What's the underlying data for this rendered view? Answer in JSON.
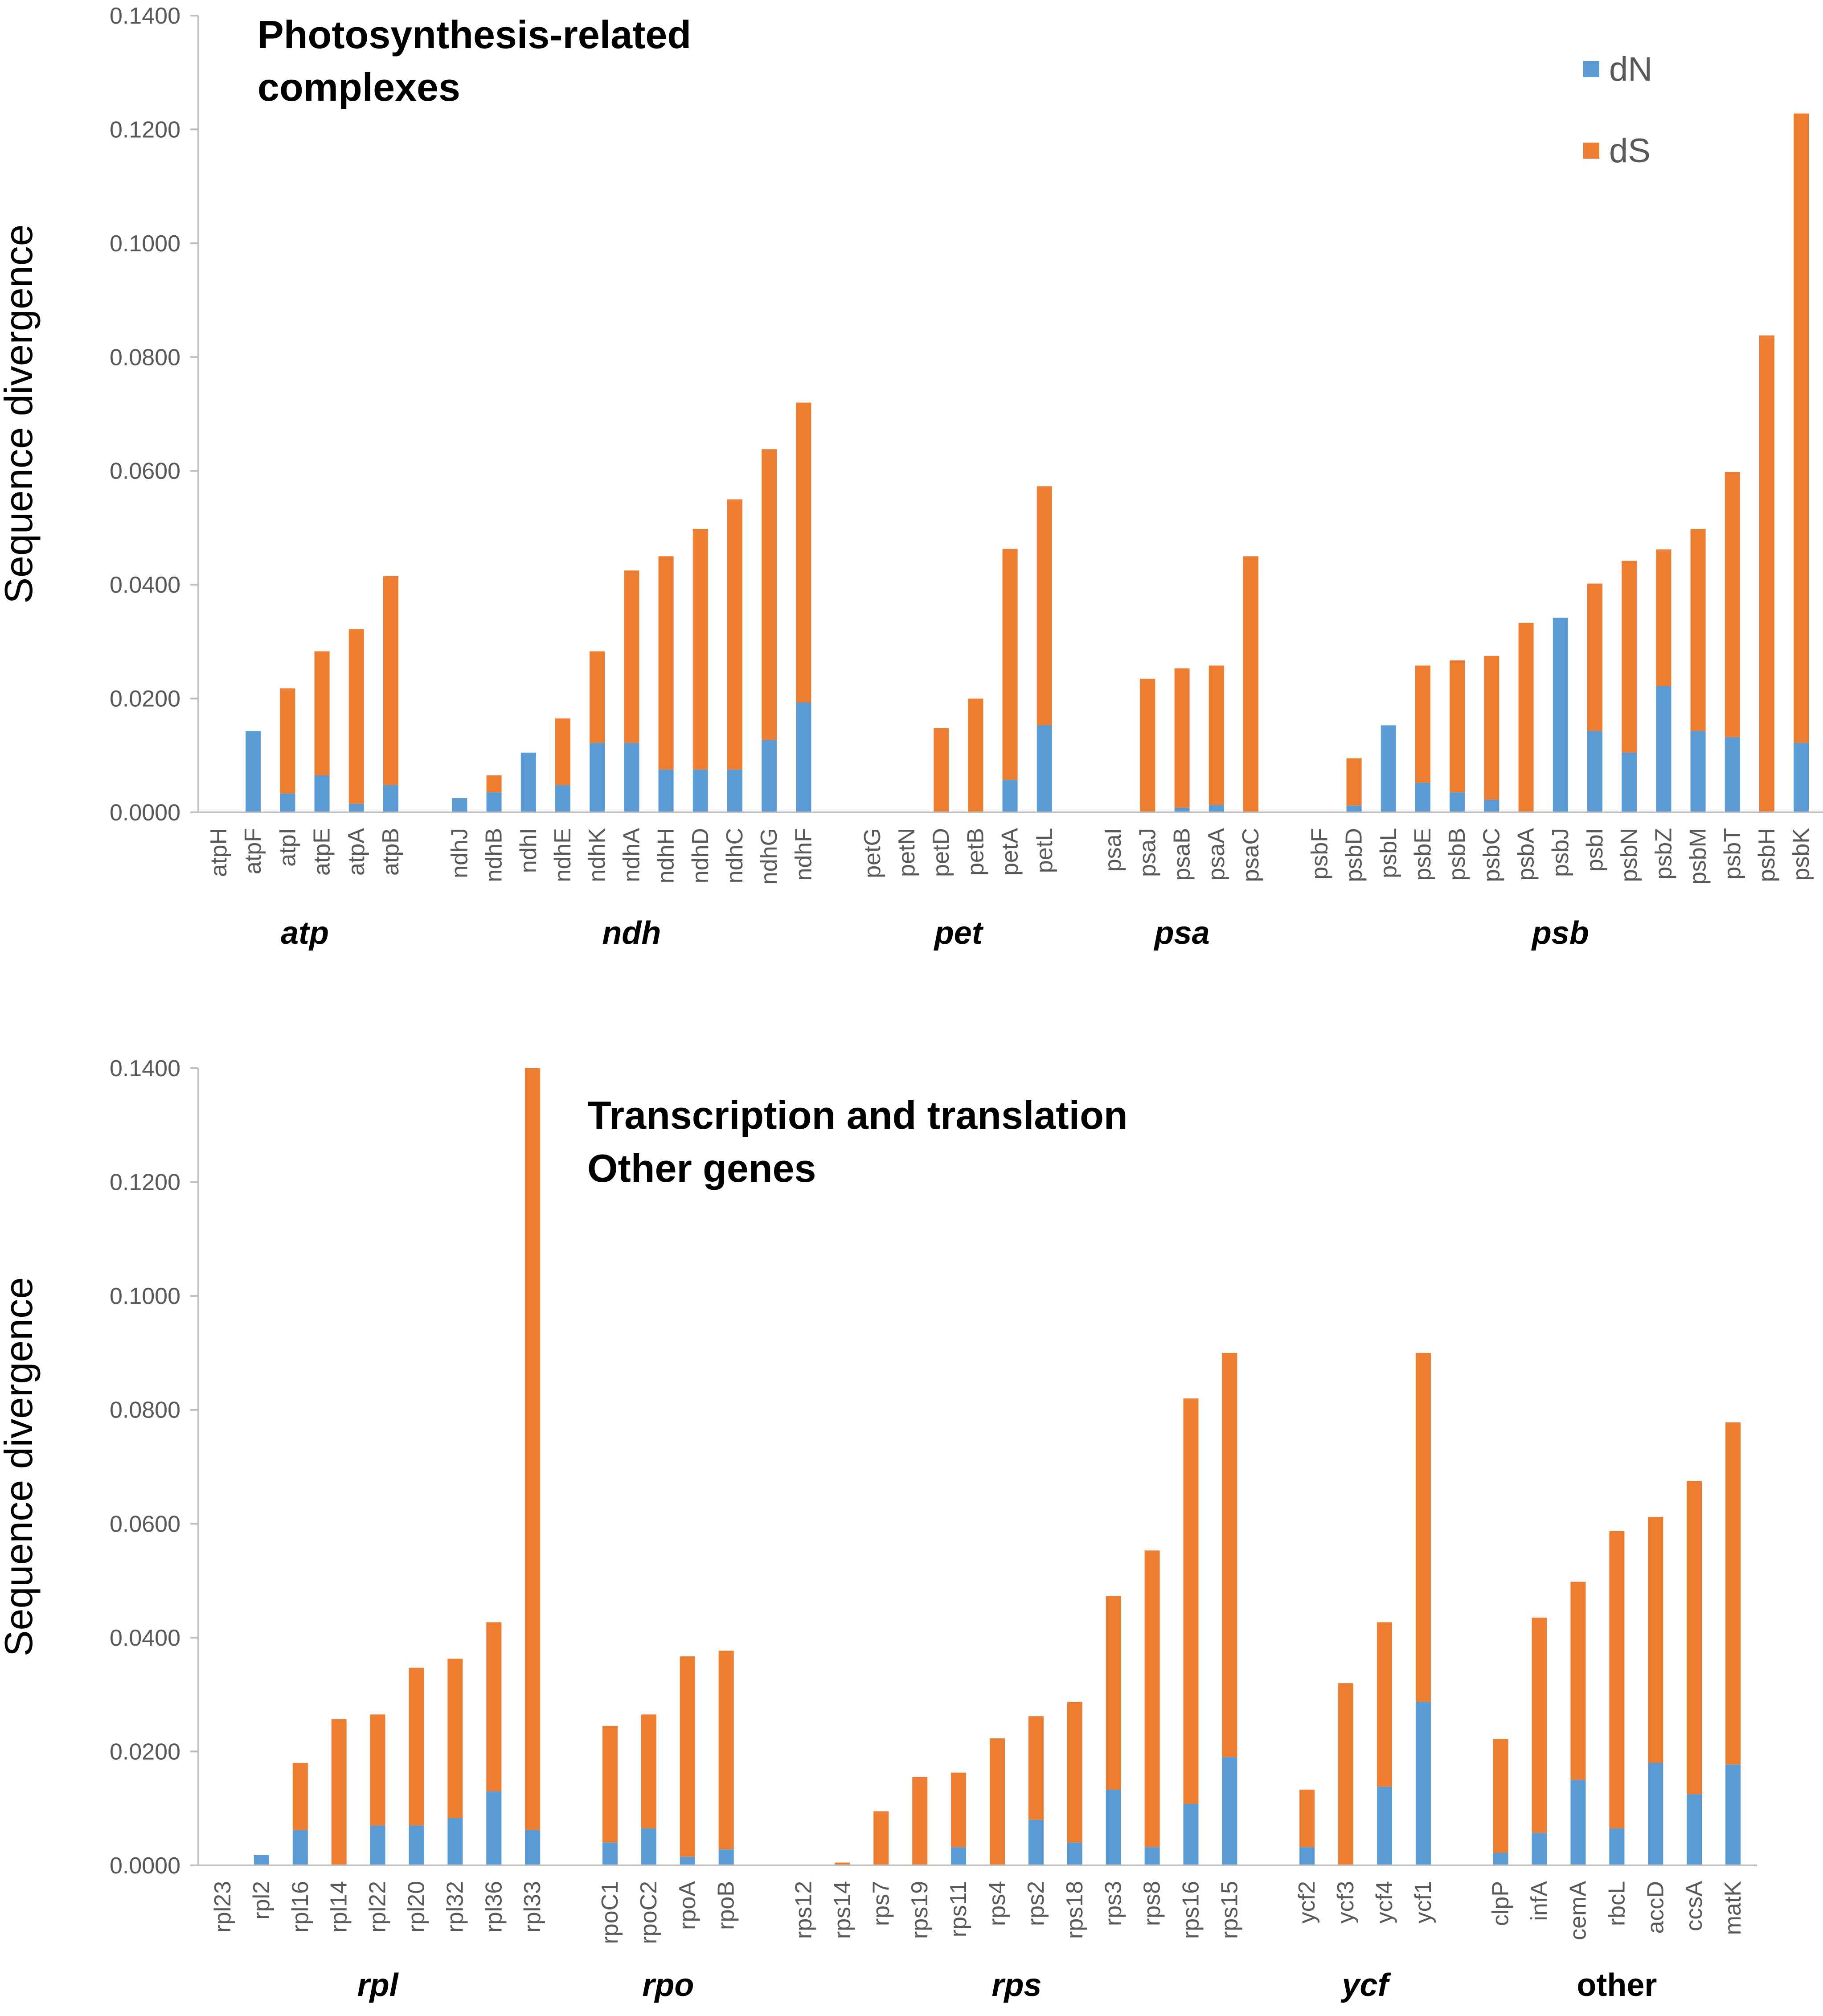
{
  "colors": {
    "dN": "#5b9bd5",
    "dS": "#ed7d31",
    "axis": "#bfbfbf",
    "text": "#595959"
  },
  "chart_data": [
    {
      "type": "bar",
      "stacked": true,
      "title": "Photosynthesis-related complexes",
      "title_lines": [
        "Photosynthesis-related",
        "complexes"
      ],
      "ylabel": "Sequence divergence",
      "ylim": [
        0,
        0.14
      ],
      "yticks": [
        "0.0000",
        "0.0200",
        "0.0400",
        "0.0600",
        "0.0800",
        "0.1000",
        "0.1200",
        "0.1400"
      ],
      "legend": [
        "dN",
        "dS"
      ],
      "legend_position": "top-right",
      "groups": [
        {
          "label": "atp",
          "genes": [
            "atpH",
            "atpF",
            "atpI",
            "atpE",
            "atpA",
            "atpB"
          ],
          "dN": [
            0,
            0.0143,
            0.0033,
            0.0065,
            0.0015,
            0.0048
          ],
          "total": [
            0,
            0.0143,
            0.0218,
            0.0283,
            0.0322,
            0.0415
          ]
        },
        {
          "label": "ndh",
          "genes": [
            "ndhJ",
            "ndhB",
            "ndhI",
            "ndhE",
            "ndhK",
            "ndhA",
            "ndhH",
            "ndhD",
            "ndhC",
            "ndhG",
            "ndhF"
          ],
          "dN": [
            0.0025,
            0.0035,
            0.0105,
            0.0048,
            0.0122,
            0.0122,
            0.0075,
            0.0075,
            0.0075,
            0.0127,
            0.0193
          ],
          "total": [
            0.0025,
            0.0065,
            0.0105,
            0.0165,
            0.0283,
            0.0425,
            0.045,
            0.0498,
            0.055,
            0.0638,
            0.072
          ]
        },
        {
          "label": "pet",
          "genes": [
            "petG",
            "petN",
            "petD",
            "petB",
            "petA",
            "petL"
          ],
          "dN": [
            0,
            0,
            0,
            0,
            0.0057,
            0.0153
          ],
          "total": [
            0,
            0,
            0.0148,
            0.02,
            0.0463,
            0.0573
          ]
        },
        {
          "label": "psa",
          "genes": [
            "psaI",
            "psaJ",
            "psaB",
            "psaA",
            "psaC"
          ],
          "dN": [
            0,
            0,
            0.0008,
            0.0013,
            0
          ],
          "total": [
            0,
            0.0235,
            0.0253,
            0.0258,
            0.045
          ]
        },
        {
          "label": "psb",
          "genes": [
            "psbF",
            "psbD",
            "psbL",
            "psbE",
            "psbB",
            "psbC",
            "psbA",
            "psbJ",
            "psbI",
            "psbN",
            "psbZ",
            "psbM",
            "psbT",
            "psbH",
            "psbK"
          ],
          "dN": [
            0,
            0.0012,
            0.0153,
            0.0052,
            0.0035,
            0.0022,
            0,
            0.0342,
            0.0143,
            0.0105,
            0.0222,
            0.0143,
            0.0132,
            0,
            0.0122
          ],
          "total": [
            0,
            0.0095,
            0.0153,
            0.0258,
            0.0267,
            0.0275,
            0.0333,
            0.0342,
            0.0402,
            0.0442,
            0.0462,
            0.0498,
            0.0598,
            0.0838,
            0.1228
          ]
        }
      ]
    },
    {
      "type": "bar",
      "stacked": true,
      "title": "Transcription and translation Other genes",
      "title_lines": [
        "Transcription and  translation",
        "Other genes"
      ],
      "ylabel": "Sequence divergence",
      "ylim": [
        0,
        0.14
      ],
      "yticks": [
        "0.0000",
        "0.0200",
        "0.0400",
        "0.0600",
        "0.0800",
        "0.1000",
        "0.1200",
        "0.1400"
      ],
      "legend": [
        "dN",
        "dS"
      ],
      "groups": [
        {
          "label": "rpl",
          "genes": [
            "rpl23",
            "rpl2",
            "rpl16",
            "rpl14",
            "rpl22",
            "rpl20",
            "rpl32",
            "rpl36",
            "rpl33"
          ],
          "dN": [
            0,
            0.0018,
            0.0062,
            0,
            0.007,
            0.007,
            0.0083,
            0.013,
            0.0062
          ],
          "total": [
            0,
            0.0018,
            0.018,
            0.0257,
            0.0265,
            0.0347,
            0.0363,
            0.0427,
            0.14
          ]
        },
        {
          "label": "rpo",
          "genes": [
            "rpoC1",
            "rpoC2",
            "rpoA",
            "rpoB"
          ],
          "dN": [
            0.004,
            0.0065,
            0.0015,
            0.0028
          ],
          "total": [
            0.0245,
            0.0265,
            0.0367,
            0.0377
          ]
        },
        {
          "label": "rps",
          "genes": [
            "rps12",
            "rps14",
            "rps7",
            "rps19",
            "rps11",
            "rps4",
            "rps2",
            "rps18",
            "rps3",
            "rps8",
            "rps16",
            "rps15"
          ],
          "dN": [
            0,
            0,
            0,
            0,
            0.0032,
            0,
            0.008,
            0.004,
            0.0133,
            0.0032,
            0.0108,
            0.019
          ],
          "total": [
            0,
            0.0005,
            0.0095,
            0.0155,
            0.0163,
            0.0223,
            0.0262,
            0.0287,
            0.0473,
            0.0553,
            0.082,
            0.09
          ]
        },
        {
          "label": "ycf",
          "genes": [
            "ycf2",
            "ycf3",
            "ycf4",
            "ycf1"
          ],
          "dN": [
            0.0032,
            0,
            0.0138,
            0.0287
          ],
          "total": [
            0.0133,
            0.032,
            0.0427,
            0.09
          ]
        },
        {
          "label": "other",
          "genes": [
            "clpP",
            "infA",
            "cemA",
            "rbcL",
            "accD",
            "ccsA",
            "matK"
          ],
          "dN": [
            0.0022,
            0.0057,
            0.015,
            0.0065,
            0.018,
            0.0125,
            0.0177
          ],
          "total": [
            0.0222,
            0.0435,
            0.0498,
            0.0587,
            0.0612,
            0.0675,
            0.0778
          ]
        }
      ]
    }
  ]
}
